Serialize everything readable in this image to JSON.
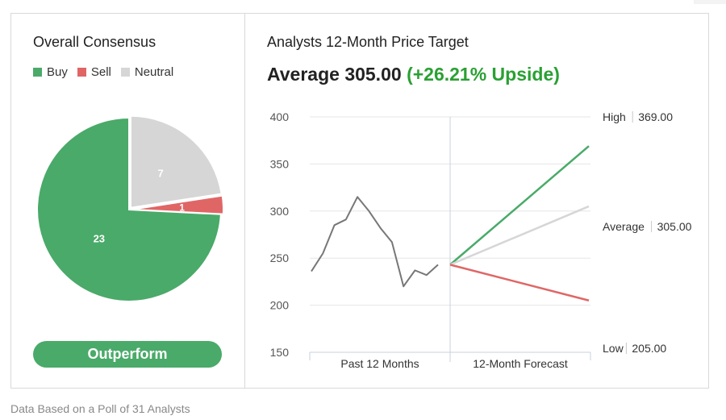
{
  "consensus": {
    "title": "Overall Consensus",
    "legend": [
      {
        "label": "Buy",
        "color": "#4aaa69"
      },
      {
        "label": "Sell",
        "color": "#e06666"
      },
      {
        "label": "Neutral",
        "color": "#d6d6d6"
      }
    ],
    "rating_label": "Outperform"
  },
  "price_target": {
    "title": "Analysts 12-Month Price Target",
    "average_prefix": "Average 305.00",
    "upside_text": "(+26.21% Upside)"
  },
  "footer": {
    "note": "Data Based on a Poll of 31 Analysts"
  },
  "chart_data": [
    {
      "type": "pie",
      "title": "Overall Consensus",
      "slices": [
        {
          "label": "Buy",
          "value": 23,
          "color": "#4aaa69"
        },
        {
          "label": "Sell",
          "value": 1,
          "color": "#e06666"
        },
        {
          "label": "Neutral",
          "value": 7,
          "color": "#d6d6d6"
        }
      ],
      "legend_position": "top"
    },
    {
      "type": "line",
      "title": "Analysts 12-Month Price Target",
      "ylim": [
        150,
        400
      ],
      "yticks": [
        150,
        200,
        250,
        300,
        350,
        400
      ],
      "x_sections": [
        "Past 12 Months",
        "12-Month Forecast"
      ],
      "grid": true,
      "history": {
        "color": "#777777",
        "values": [
          236,
          255,
          285,
          291,
          315,
          300,
          282,
          267,
          220,
          237,
          232,
          243
        ]
      },
      "forecast_start": 243,
      "targets": [
        {
          "label": "High",
          "value_text": "369.00",
          "value": 369,
          "color": "#4aaa69"
        },
        {
          "label": "Average",
          "value_text": "305.00",
          "value": 305,
          "color": "#d6d6d6"
        },
        {
          "label": "Low",
          "value_text": "205.00",
          "value": 205,
          "color": "#e06666"
        }
      ]
    }
  ]
}
